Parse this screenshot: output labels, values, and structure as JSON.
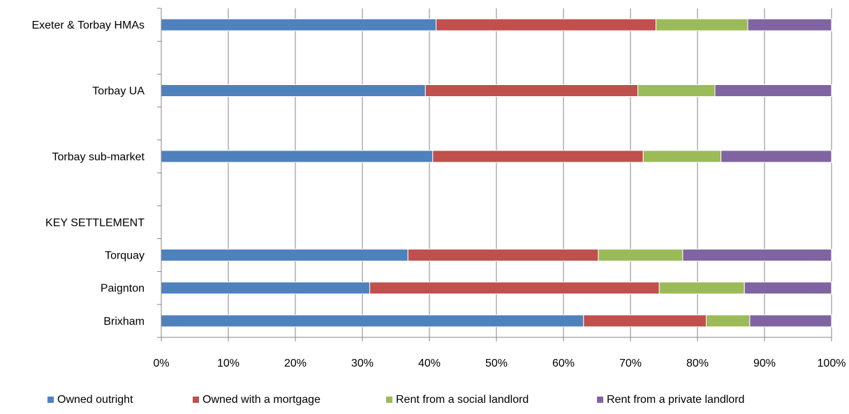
{
  "chart_data": {
    "type": "bar",
    "orientation": "horizontal",
    "stacked": "percent",
    "title": "",
    "xlabel": "",
    "ylabel": "",
    "xlim": [
      0,
      100
    ],
    "x_ticks": [
      "0%",
      "10%",
      "20%",
      "30%",
      "40%",
      "50%",
      "60%",
      "70%",
      "80%",
      "90%",
      "100%"
    ],
    "grid": "vertical",
    "legend": "bottom",
    "categories": [
      "Exeter & Torbay HMAs",
      "",
      "Torbay UA",
      "",
      "Torbay sub-market",
      "",
      "KEY SETTLEMENT",
      "Torquay",
      "Paignton",
      "Brixham"
    ],
    "series": [
      {
        "name": "Owned outright",
        "color": "#4F81BD",
        "values": [
          41.0,
          null,
          39.4,
          null,
          40.5,
          null,
          null,
          36.8,
          31.1,
          63.0
        ]
      },
      {
        "name": "Owned with a mortgage",
        "color": "#C0504D",
        "values": [
          32.8,
          null,
          31.7,
          null,
          31.4,
          null,
          null,
          28.4,
          43.2,
          18.3
        ]
      },
      {
        "name": "Rent from a social landlord",
        "color": "#9BBB59",
        "values": [
          13.7,
          null,
          11.5,
          null,
          11.6,
          null,
          null,
          12.6,
          12.7,
          6.5
        ]
      },
      {
        "name": "Rent from a private landlord",
        "color": "#8064A2",
        "values": [
          12.5,
          null,
          17.4,
          null,
          16.5,
          null,
          null,
          22.2,
          13.0,
          12.2
        ]
      }
    ]
  }
}
